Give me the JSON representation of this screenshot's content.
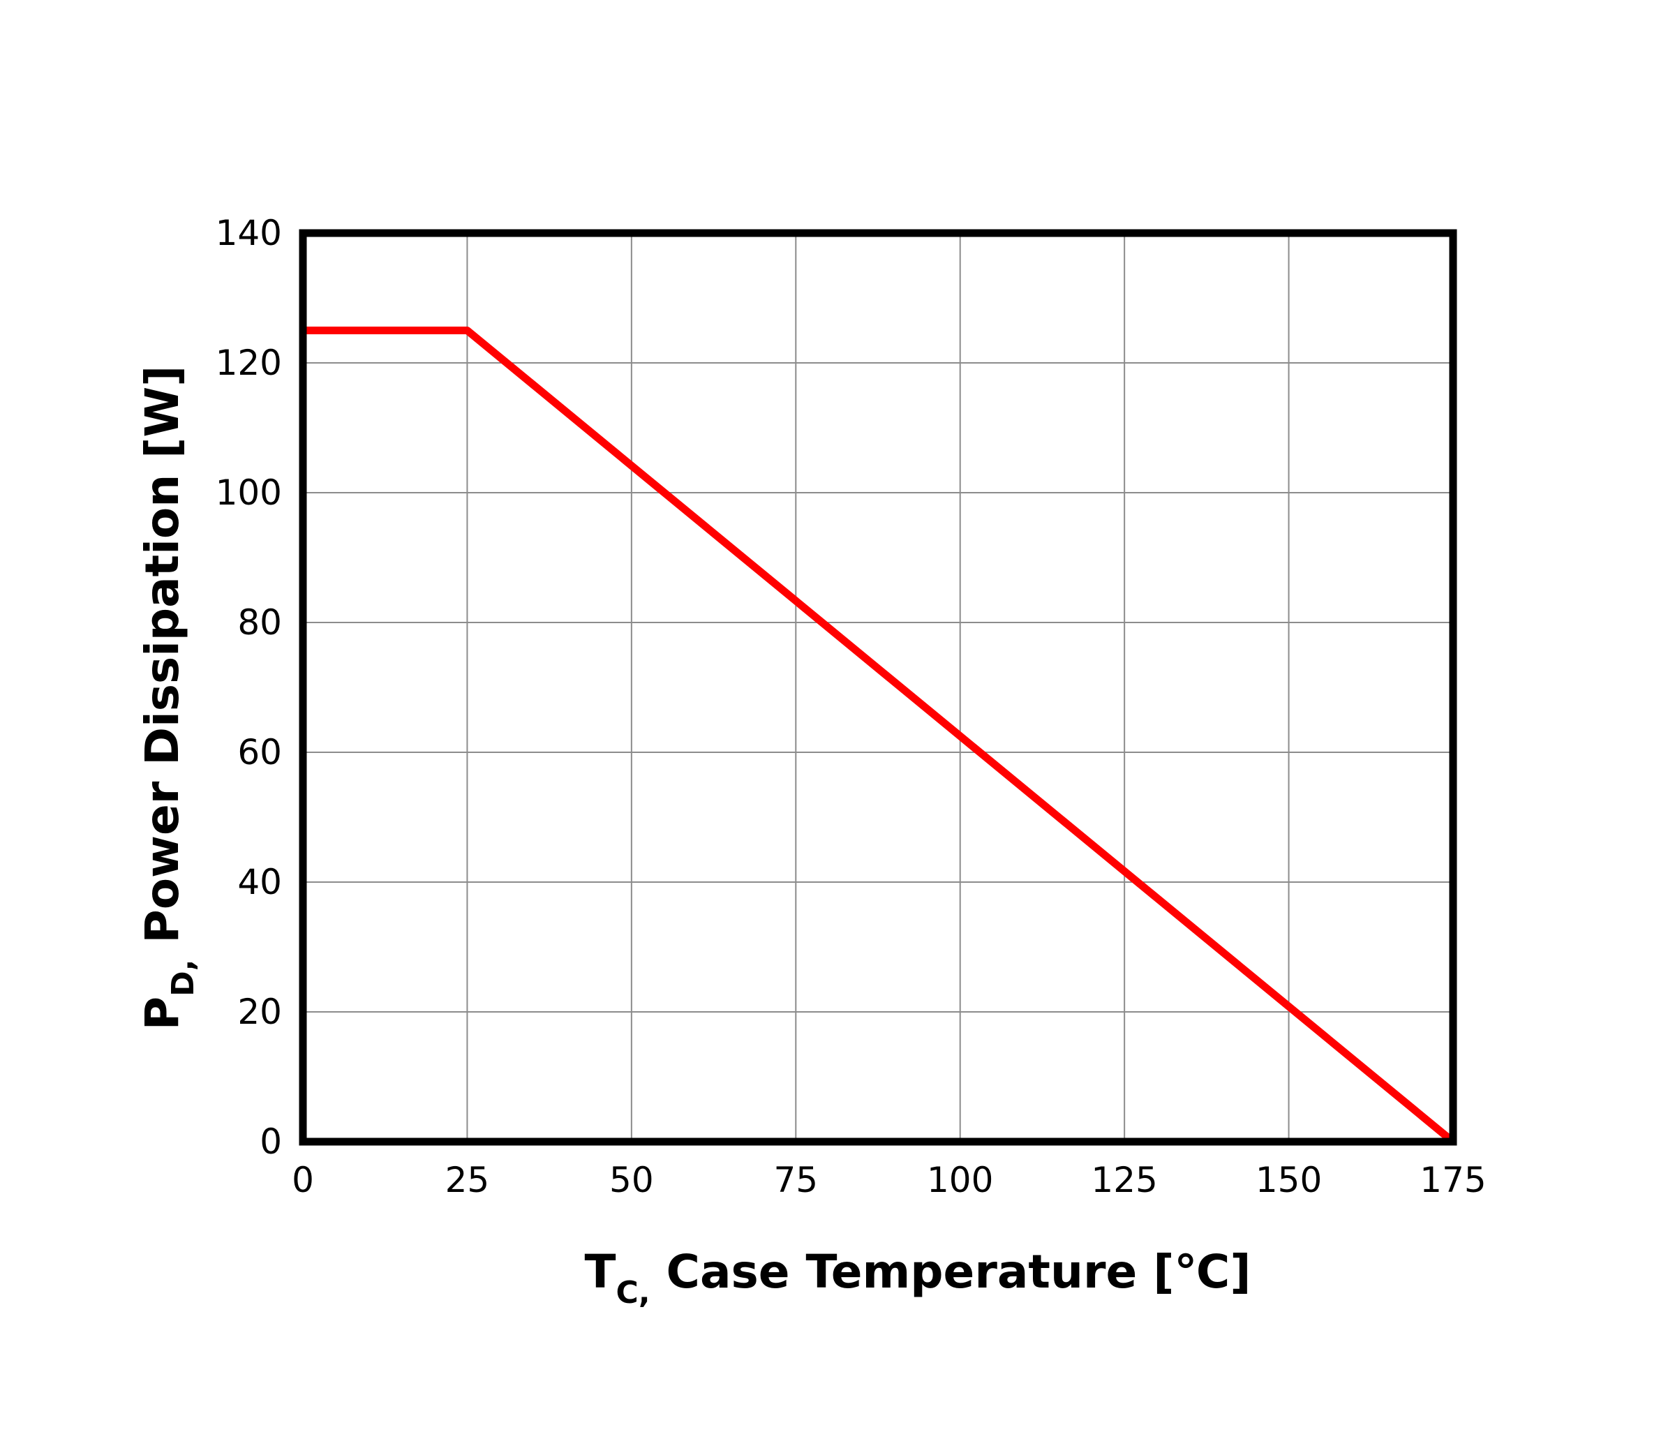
{
  "chart_data": {
    "type": "line",
    "xlabel_main": "T",
    "xlabel_sub": "C,",
    "xlabel_rest": " Case Temperature [℃]",
    "ylabel_main": "P",
    "ylabel_sub": "D,",
    "ylabel_rest": " Power Dissipation [W]",
    "x_ticks": [
      "0",
      "25",
      "50",
      "75",
      "100",
      "125",
      "150",
      "175"
    ],
    "y_ticks": [
      "0",
      "20",
      "40",
      "60",
      "80",
      "100",
      "120",
      "140"
    ],
    "xlim": [
      0,
      175
    ],
    "ylim": [
      0,
      140
    ],
    "grid": true,
    "series": [
      {
        "color": "#ff0000",
        "x": [
          0,
          25,
          175
        ],
        "y": [
          125,
          125,
          0
        ]
      }
    ]
  }
}
